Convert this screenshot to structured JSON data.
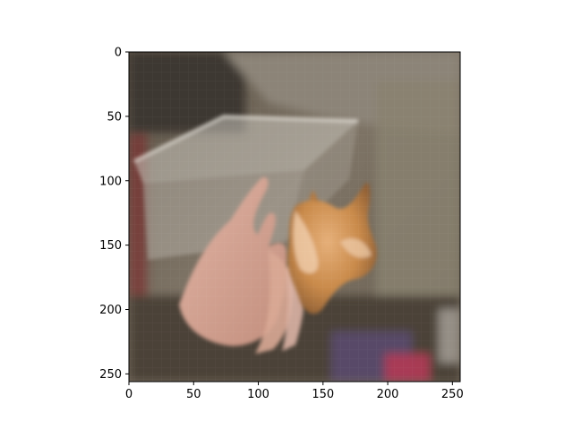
{
  "chart_data": {
    "type": "image",
    "title": "",
    "xlabel": "",
    "ylabel": "",
    "xlim": [
      0,
      256
    ],
    "ylim": [
      256,
      0
    ],
    "y_axis_inverted": true,
    "grid": false,
    "xticks": [
      0,
      50,
      100,
      150,
      200,
      250
    ],
    "yticks": [
      0,
      50,
      100,
      150,
      200,
      250
    ],
    "xtick_labels": [
      "0",
      "50",
      "100",
      "150",
      "200",
      "250"
    ],
    "ytick_labels": [
      "0",
      "50",
      "100",
      "150",
      "200",
      "250"
    ],
    "image_description_tag": "blurry photo of a hand holding a small orange kitten near a translucent plastic box",
    "image_resolution": [
      256,
      256
    ]
  }
}
